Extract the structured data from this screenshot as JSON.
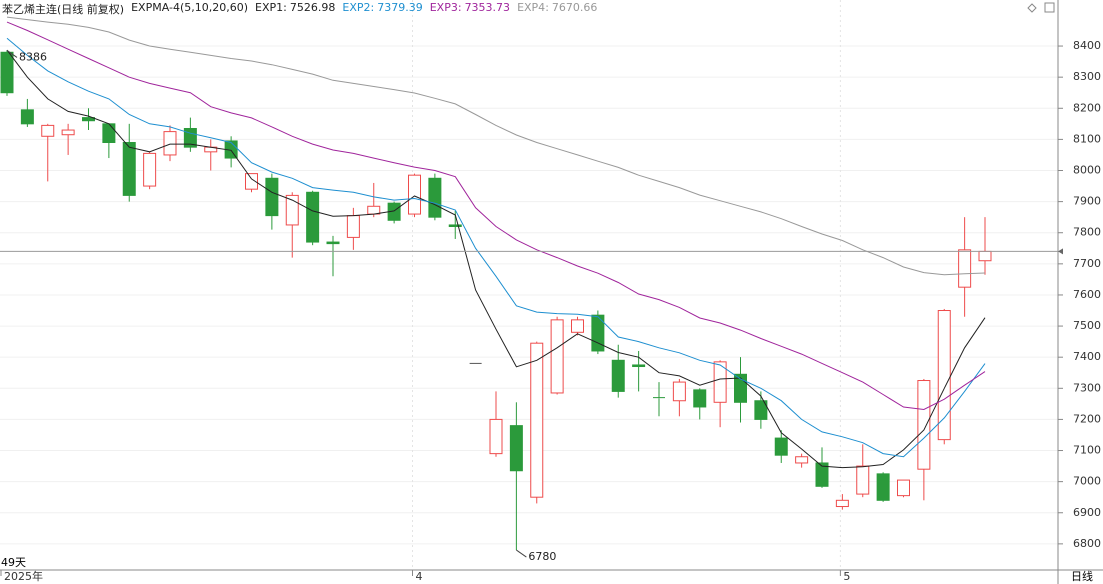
{
  "chart_data": {
    "type": "candlestick",
    "title": "苯乙烯主连(日线 前复权)",
    "indicator": "EXPMA-4(5,10,20,60)",
    "categories": [
      "2025年",
      null,
      null,
      null,
      null,
      null,
      null,
      null,
      null,
      null,
      null,
      null,
      null,
      null,
      null,
      null,
      null,
      null,
      null,
      null,
      "4",
      null,
      null,
      null,
      null,
      null,
      null,
      null,
      null,
      null,
      null,
      null,
      null,
      null,
      null,
      null,
      null,
      null,
      null,
      null,
      null,
      "5",
      null,
      null,
      null,
      null,
      null,
      null,
      null
    ],
    "open": [
      8380,
      8195,
      8110,
      8115,
      8170,
      8150,
      8090,
      7950,
      8050,
      8135,
      8060,
      8095,
      7940,
      7975,
      7825,
      7930,
      7770,
      7785,
      7860,
      7895,
      7860,
      7975,
      7825,
      7380,
      7090,
      7180,
      6950,
      7285,
      7480,
      7535,
      7390,
      7375,
      7270,
      7260,
      7295,
      7255,
      7345,
      7260,
      7140,
      7060,
      7060,
      6920,
      6960,
      7025,
      6955,
      7040,
      7135,
      7625,
      7710
    ],
    "high": [
      8386,
      8230,
      8150,
      8150,
      8200,
      8150,
      8150,
      8060,
      8145,
      8170,
      8100,
      8110,
      7990,
      7990,
      7930,
      7935,
      7790,
      7880,
      7960,
      7900,
      7990,
      7990,
      7870,
      7380,
      7290,
      7255,
      7450,
      7530,
      7530,
      7550,
      7440,
      7420,
      7320,
      7330,
      7300,
      7390,
      7400,
      7290,
      7165,
      7090,
      7110,
      6960,
      7120,
      7030,
      7005,
      7330,
      7555,
      7850,
      7850
    ],
    "low": [
      8240,
      8140,
      7965,
      8050,
      8130,
      8040,
      7900,
      7940,
      8030,
      8060,
      8000,
      8010,
      7930,
      7810,
      7720,
      7760,
      7660,
      7745,
      7850,
      7830,
      7850,
      7840,
      7780,
      7380,
      7080,
      6780,
      6930,
      7280,
      7470,
      7410,
      7270,
      7290,
      7210,
      7210,
      7200,
      7175,
      7190,
      7170,
      7060,
      7045,
      6980,
      6910,
      6950,
      6935,
      6950,
      6940,
      7120,
      7530,
      7665
    ],
    "close": [
      8250,
      8150,
      8145,
      8130,
      8160,
      8090,
      7920,
      8055,
      8125,
      8075,
      8075,
      8040,
      7990,
      7855,
      7920,
      7770,
      7765,
      7855,
      7885,
      7840,
      7985,
      7850,
      7820,
      7380,
      7200,
      7035,
      7445,
      7520,
      7520,
      7420,
      7290,
      7370,
      7268,
      7320,
      7240,
      7385,
      7255,
      7200,
      7085,
      7080,
      6985,
      6940,
      7050,
      6940,
      7005,
      7325,
      7550,
      7745,
      7740
    ],
    "up_color": "#ee4b4b",
    "down_color": "#2b9a3b",
    "series": [
      {
        "name": "EXP1",
        "color": "#222222",
        "values": [
          8387,
          8300,
          8230,
          8190,
          8175,
          8150,
          8075,
          8060,
          8085,
          8085,
          8075,
          8065,
          7973,
          7930,
          7905,
          7870,
          7853,
          7855,
          7860,
          7870,
          7918,
          7890,
          7857,
          7616,
          7490,
          7369,
          7390,
          7430,
          7475,
          7446,
          7415,
          7400,
          7350,
          7340,
          7310,
          7330,
          7333,
          7275,
          7157,
          7105,
          7050,
          7045,
          7048,
          7055,
          7102,
          7166,
          7300,
          7430,
          7526.98
        ]
      },
      {
        "name": "EXP2",
        "color": "#1e8fd0",
        "values": [
          8425,
          8370,
          8320,
          8285,
          8255,
          8230,
          8180,
          8150,
          8140,
          8120,
          8105,
          8090,
          8025,
          7995,
          7975,
          7945,
          7937,
          7930,
          7915,
          7905,
          7910,
          7895,
          7873,
          7750,
          7660,
          7565,
          7545,
          7540,
          7538,
          7530,
          7465,
          7450,
          7430,
          7414,
          7390,
          7375,
          7330,
          7300,
          7260,
          7200,
          7160,
          7144,
          7125,
          7090,
          7080,
          7140,
          7205,
          7290,
          7379.39
        ]
      },
      {
        "name": "EXP3",
        "color": "#a0259c",
        "values": [
          8477,
          8450,
          8420,
          8390,
          8360,
          8330,
          8300,
          8280,
          8265,
          8250,
          8205,
          8185,
          8169,
          8140,
          8110,
          8085,
          8066,
          8055,
          8040,
          8025,
          8011,
          8000,
          7980,
          7880,
          7820,
          7777,
          7745,
          7720,
          7693,
          7670,
          7640,
          7603,
          7585,
          7560,
          7526,
          7510,
          7487,
          7460,
          7435,
          7410,
          7380,
          7350,
          7320,
          7280,
          7240,
          7232,
          7265,
          7310,
          7353.73
        ]
      },
      {
        "name": "EXP4",
        "color": "#999999",
        "values": [
          8493,
          8485,
          8477,
          8470,
          8460,
          8445,
          8419,
          8400,
          8390,
          8380,
          8370,
          8360,
          8352,
          8340,
          8325,
          8310,
          8290,
          8280,
          8270,
          8260,
          8249,
          8232,
          8214,
          8180,
          8145,
          8114,
          8090,
          8070,
          8050,
          8030,
          8010,
          7985,
          7965,
          7945,
          7921,
          7903,
          7885,
          7867,
          7845,
          7820,
          7796,
          7775,
          7745,
          7720,
          7690,
          7672,
          7665,
          7668,
          7670.66
        ]
      }
    ],
    "ylim": [
      6716,
      8548
    ],
    "yticks": [
      6800,
      6900,
      7000,
      7100,
      7200,
      7300,
      7400,
      7500,
      7600,
      7700,
      7800,
      7900,
      8000,
      8100,
      8200,
      8300,
      8400
    ],
    "grid": true,
    "bar_count_label": "49天",
    "period_label": "日线"
  }
}
